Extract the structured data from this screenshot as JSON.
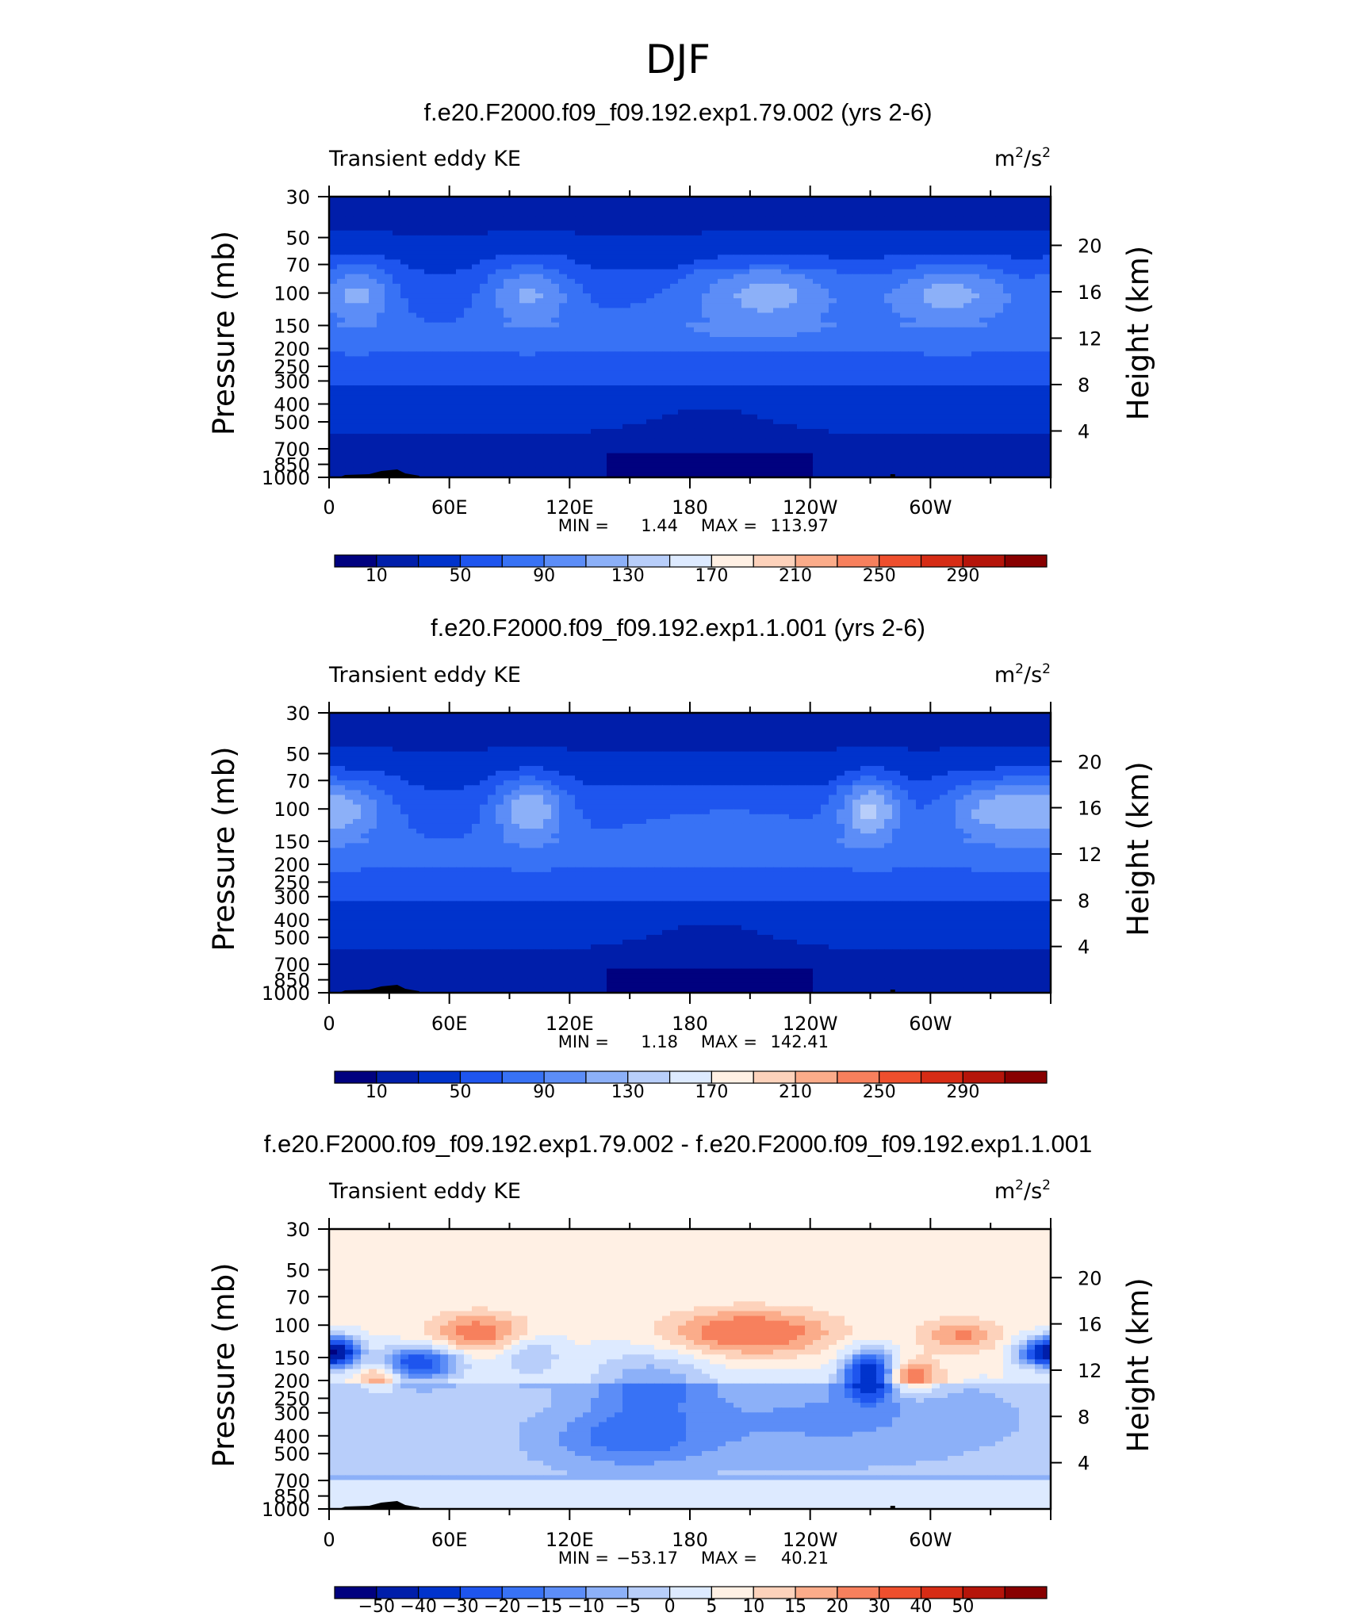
{
  "page_title": "DJF",
  "colors": {
    "abs_scale": [
      "#00017f",
      "#001eaa",
      "#0033cc",
      "#1e55ee",
      "#3872f5",
      "#5c8df7",
      "#8cb0f8",
      "#b8cefa",
      "#ddeaff",
      "#fff0e4",
      "#fdd2bb",
      "#fbac8a",
      "#f7805d",
      "#ee4f2d",
      "#d62c15",
      "#b5150a",
      "#880000"
    ],
    "diff_scale": [
      "#00017f",
      "#001eaa",
      "#0033cc",
      "#1e55ee",
      "#3872f5",
      "#5c8df7",
      "#8cb0f8",
      "#b8cefa",
      "#ddeaff",
      "#fff0e4",
      "#fdd2bb",
      "#fbac8a",
      "#f7805d",
      "#ee4f2d",
      "#d62c15",
      "#b5150a",
      "#880000"
    ]
  },
  "chart_data": [
    {
      "type": "heatmap",
      "title": "f.e20.F2000.f09_f09.192.exp1.79.002 (yrs 2-6)",
      "left_label": "Transient eddy KE",
      "units": "m²/s²",
      "units_base": "m",
      "units_mid": "/s",
      "units_exp": "2",
      "ylabel_left": "Pressure (mb)",
      "ylabel_right": "Height (km)",
      "x_ticks": [
        "0",
        "60E",
        "120E",
        "180",
        "120W",
        "60W"
      ],
      "x_tick_lon": [
        0,
        60,
        120,
        180,
        240,
        300
      ],
      "y_ticks": [
        "30",
        "50",
        "70",
        "100",
        "150",
        "200",
        "250",
        "300",
        "400",
        "500",
        "700",
        "850",
        "1000"
      ],
      "y_tick_p": [
        30,
        50,
        70,
        100,
        150,
        200,
        250,
        300,
        400,
        500,
        700,
        850,
        1000
      ],
      "right_ticks": [
        "20",
        "16",
        "12",
        "8",
        "4"
      ],
      "right_tick_km": [
        20,
        16,
        12,
        8,
        4
      ],
      "stats_min_label": "MIN =",
      "stats_min": "1.44",
      "stats_max_label": "MAX =",
      "stats_max": "113.97",
      "colorbar_labels": [
        "10",
        "50",
        "90",
        "130",
        "170",
        "210",
        "250",
        "290"
      ],
      "levels": [
        10,
        30,
        50,
        70,
        90,
        110,
        130,
        150,
        170,
        190,
        210,
        230,
        250,
        270,
        290
      ]
    },
    {
      "type": "heatmap",
      "title": "f.e20.F2000.f09_f09.192.exp1.1.001 (yrs 2-6)",
      "left_label": "Transient eddy KE",
      "units": "m²/s²",
      "units_base": "m",
      "units_mid": "/s",
      "units_exp": "2",
      "ylabel_left": "Pressure (mb)",
      "ylabel_right": "Height (km)",
      "x_ticks": [
        "0",
        "60E",
        "120E",
        "180",
        "120W",
        "60W"
      ],
      "x_tick_lon": [
        0,
        60,
        120,
        180,
        240,
        300
      ],
      "y_ticks": [
        "30",
        "50",
        "70",
        "100",
        "150",
        "200",
        "250",
        "300",
        "400",
        "500",
        "700",
        "850",
        "1000"
      ],
      "y_tick_p": [
        30,
        50,
        70,
        100,
        150,
        200,
        250,
        300,
        400,
        500,
        700,
        850,
        1000
      ],
      "right_ticks": [
        "20",
        "16",
        "12",
        "8",
        "4"
      ],
      "right_tick_km": [
        20,
        16,
        12,
        8,
        4
      ],
      "stats_min_label": "MIN =",
      "stats_min": "1.18",
      "stats_max_label": "MAX =",
      "stats_max": "142.41",
      "colorbar_labels": [
        "10",
        "50",
        "90",
        "130",
        "170",
        "210",
        "250",
        "290"
      ],
      "levels": [
        10,
        30,
        50,
        70,
        90,
        110,
        130,
        150,
        170,
        190,
        210,
        230,
        250,
        270,
        290
      ]
    },
    {
      "type": "heatmap",
      "title": "f.e20.F2000.f09_f09.192.exp1.79.002 - f.e20.F2000.f09_f09.192.exp1.1.001",
      "left_label": "Transient eddy KE",
      "units": "m²/s²",
      "units_base": "m",
      "units_mid": "/s",
      "units_exp": "2",
      "ylabel_left": "Pressure (mb)",
      "ylabel_right": "Height (km)",
      "x_ticks": [
        "0",
        "60E",
        "120E",
        "180",
        "120W",
        "60W"
      ],
      "x_tick_lon": [
        0,
        60,
        120,
        180,
        240,
        300
      ],
      "y_ticks": [
        "30",
        "50",
        "70",
        "100",
        "150",
        "200",
        "250",
        "300",
        "400",
        "500",
        "700",
        "850",
        "1000"
      ],
      "y_tick_p": [
        30,
        50,
        70,
        100,
        150,
        200,
        250,
        300,
        400,
        500,
        700,
        850,
        1000
      ],
      "right_ticks": [
        "20",
        "16",
        "12",
        "8",
        "4"
      ],
      "right_tick_km": [
        20,
        16,
        12,
        8,
        4
      ],
      "stats_min_label": "MIN =",
      "stats_min": "−53.17",
      "stats_max_label": "MAX =",
      "stats_max": "40.21",
      "colorbar_labels": [
        "−50",
        "−40",
        "−30",
        "−20",
        "−15",
        "−10",
        "−5",
        "0",
        "5",
        "10",
        "15",
        "20",
        "30",
        "40",
        "50"
      ],
      "levels": [
        -50,
        -40,
        -30,
        -20,
        -15,
        -10,
        -5,
        0,
        5,
        10,
        15,
        20,
        30,
        40,
        50
      ]
    }
  ]
}
